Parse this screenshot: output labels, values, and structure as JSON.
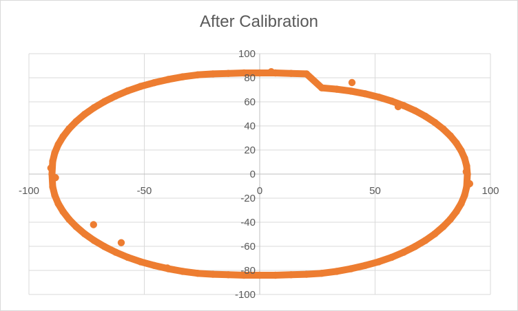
{
  "chart_data": {
    "type": "scatter",
    "title": "After Calibration",
    "xlabel": "",
    "ylabel": "",
    "xlim": [
      -100,
      100
    ],
    "ylim": [
      -100,
      100
    ],
    "x_ticks": [
      "-100",
      "-50",
      "0",
      "50",
      "100"
    ],
    "y_ticks": [
      "100",
      "80",
      "60",
      "40",
      "20",
      "0",
      "-20",
      "-40",
      "-60",
      "-80",
      "-100"
    ],
    "grid": true,
    "legend": "none",
    "marker_color": "#ED7D31",
    "series": [
      {
        "x": [
          90.0,
          89.7,
          88.8,
          87.3,
          85.2,
          82.6,
          79.5,
          75.9,
          71.8,
          67.3,
          62.4,
          57.2,
          51.6,
          45.7,
          39.6,
          33.3,
          26.9,
          20.3,
          13.6,
          6.8,
          0.0,
          -6.8,
          -13.6,
          -20.3,
          -26.9,
          -33.3,
          -39.6,
          -45.7,
          -51.6,
          -57.2,
          -62.4,
          -67.3,
          -71.8,
          -75.9,
          -79.5,
          -82.6,
          -85.2,
          -87.3,
          -88.8,
          -89.7,
          -90.0,
          -89.7,
          -88.8,
          -87.3,
          -85.2,
          -82.6,
          -79.5,
          -75.9,
          -71.8,
          -67.3,
          -62.4,
          -57.2,
          -51.6,
          -45.7,
          -39.6,
          -33.3,
          -26.9,
          -20.3,
          -13.6,
          -6.8,
          0.0,
          6.8,
          13.6,
          20.3,
          26.9,
          33.3,
          39.6,
          45.7,
          51.6,
          57.2,
          62.4,
          67.3,
          71.8,
          75.9,
          79.5,
          82.6,
          85.2,
          87.3,
          88.8,
          89.7,
          91.0,
          -90.5,
          -88.5,
          89.5,
          -72.0,
          -60.0,
          60.0,
          40.0,
          -40.0,
          5.0
        ],
        "y": [
          0.0,
          6.6,
          13.1,
          19.5,
          25.8,
          31.8,
          37.5,
          42.9,
          48.0,
          52.7,
          56.9,
          60.6,
          63.9,
          66.7,
          68.9,
          70.5,
          71.6,
          83.2,
          83.6,
          84.0,
          84.0,
          84.0,
          83.6,
          83.2,
          82.4,
          80.8,
          78.6,
          75.9,
          72.8,
          69.1,
          64.9,
          60.2,
          55.1,
          49.6,
          43.7,
          37.6,
          31.2,
          24.5,
          17.6,
          10.6,
          0.0,
          -10.6,
          -17.6,
          -24.5,
          -31.2,
          -37.6,
          -43.7,
          -49.6,
          -55.1,
          -60.2,
          -64.9,
          -69.1,
          -72.8,
          -75.9,
          -78.6,
          -80.8,
          -82.4,
          -83.2,
          -83.6,
          -84.0,
          -84.0,
          -84.0,
          -83.6,
          -83.2,
          -82.4,
          -80.8,
          -78.6,
          -75.9,
          -72.8,
          -69.1,
          -64.9,
          -60.2,
          -55.1,
          -49.6,
          -43.7,
          -37.6,
          -31.2,
          -24.5,
          -17.6,
          -10.6,
          -8.0,
          5.0,
          -3.0,
          2.0,
          -42.0,
          -57.0,
          56.0,
          76.0,
          -78.0,
          85.0
        ]
      }
    ]
  }
}
